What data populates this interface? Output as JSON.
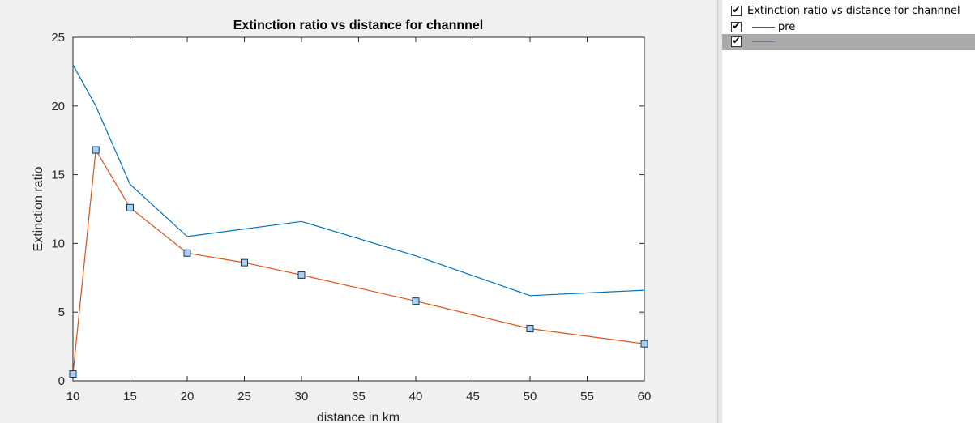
{
  "chart_data": {
    "type": "line",
    "title": "Extinction ratio vs distance for channnel",
    "xlabel": "distance in km",
    "ylabel": "Extinction ratio",
    "xlim": [
      10,
      60
    ],
    "ylim": [
      0,
      25
    ],
    "xticks": [
      10,
      15,
      20,
      25,
      30,
      35,
      40,
      45,
      50,
      55,
      60
    ],
    "yticks": [
      0,
      5,
      10,
      15,
      20,
      25
    ],
    "grid": false,
    "series": [
      {
        "name": "pre",
        "color": "#0072bd",
        "marker": "none",
        "x": [
          10,
          12,
          15,
          20,
          30,
          40,
          50,
          60
        ],
        "y": [
          23.0,
          20.0,
          14.3,
          10.5,
          11.6,
          9.1,
          6.2,
          6.6
        ]
      },
      {
        "name": "",
        "color": "#d95319",
        "marker": "square",
        "x": [
          10,
          12,
          15,
          20,
          25,
          30,
          40,
          50,
          60
        ],
        "y": [
          0.5,
          16.8,
          12.6,
          9.3,
          8.6,
          7.7,
          5.8,
          3.8,
          2.7
        ]
      }
    ]
  },
  "browser": {
    "items": [
      {
        "label": "Extinction ratio vs distance for channnel",
        "checked": "✔",
        "color": ""
      },
      {
        "label": "pre",
        "checked": "✔",
        "color": "#0072bd"
      },
      {
        "label": "",
        "checked": "✔",
        "color": "#d95319",
        "selected": true
      }
    ]
  }
}
